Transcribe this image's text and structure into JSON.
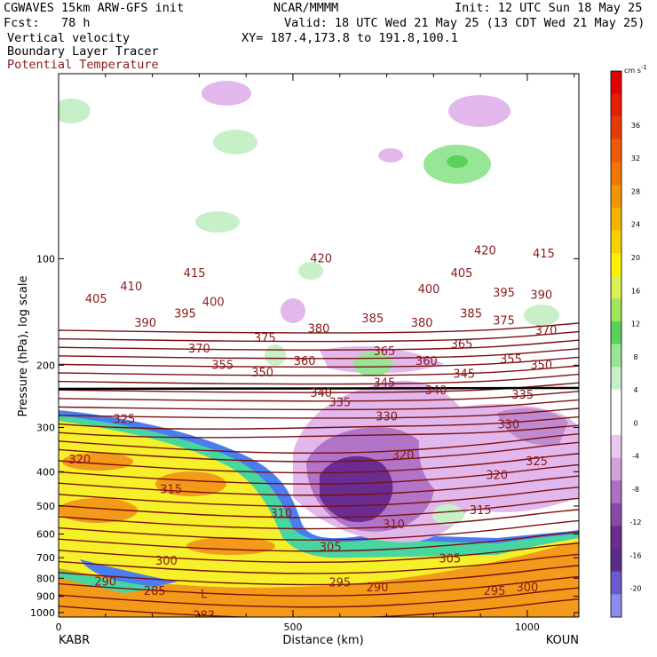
{
  "header": {
    "model": "CGWAVES 15km ARW-GFS init",
    "forecast": "Fcst:   78 h",
    "center": "NCAR/MMMM",
    "init": "Init: 12 UTC Sun 18 May 25",
    "valid": "Valid: 18 UTC Wed 21 May 25 (13 CDT Wed 21 May 25)",
    "xy": "XY= 187.4,173.8 to 191.8,100.1",
    "field1": "Vertical velocity",
    "field2": "Boundary Layer Tracer",
    "field3": "Potential Temperature"
  },
  "colors": {
    "theta_contour": "#7a1010",
    "tropopause_line": "#000000",
    "text": "#000000",
    "theta_label": "#8b1a1a"
  },
  "chart_data": {
    "type": "cross-section",
    "ylabel": "Pressure (hPa), log scale",
    "xlabel": "Distance (km)",
    "x_start_label": "KABR",
    "x_end_label": "KOUN",
    "xlim": [
      0,
      1110
    ],
    "xticks": [
      0,
      500,
      1000
    ],
    "ylim_hpa": [
      1030,
      30
    ],
    "yticks": [
      100,
      200,
      300,
      400,
      500,
      600,
      700,
      800,
      900,
      1000
    ],
    "colorbar": {
      "unit": "cm s",
      "unit_exponent": "-1",
      "ticks": [
        36,
        32,
        28,
        24,
        20,
        16,
        12,
        8,
        4,
        0,
        -4,
        -8,
        -12,
        -16,
        -20
      ],
      "colors": [
        "#8c8cf0",
        "#6a5acd",
        "#5a2d8a",
        "#6a2c91",
        "#8a4aa8",
        "#ae6fc0",
        "#d4a0dc",
        "#e8c8ee",
        "#ffffff",
        "#ffffff",
        "#c8f0c8",
        "#96e696",
        "#5ad25a",
        "#a0e65a",
        "#dcf050",
        "#fff000",
        "#fad200",
        "#f5b400",
        "#f09600",
        "#f07800",
        "#f05a00",
        "#e63c00",
        "#e61e00",
        "#e60000"
      ]
    },
    "theta_labels": [
      {
        "x": 290,
        "p": 110,
        "v": "415"
      },
      {
        "x": 155,
        "p": 120,
        "v": "410"
      },
      {
        "x": 80,
        "p": 130,
        "v": "405"
      },
      {
        "x": 330,
        "p": 133,
        "v": "400"
      },
      {
        "x": 270,
        "p": 143,
        "v": "395"
      },
      {
        "x": 185,
        "p": 152,
        "v": "390"
      },
      {
        "x": 560,
        "p": 100,
        "v": "420"
      },
      {
        "x": 910,
        "p": 95,
        "v": "420"
      },
      {
        "x": 1035,
        "p": 97,
        "v": "415"
      },
      {
        "x": 860,
        "p": 110,
        "v": "405"
      },
      {
        "x": 790,
        "p": 122,
        "v": "400"
      },
      {
        "x": 950,
        "p": 125,
        "v": "395"
      },
      {
        "x": 1030,
        "p": 127,
        "v": "390"
      },
      {
        "x": 670,
        "p": 148,
        "v": "385"
      },
      {
        "x": 880,
        "p": 143,
        "v": "385"
      },
      {
        "x": 555,
        "p": 158,
        "v": "380"
      },
      {
        "x": 775,
        "p": 152,
        "v": "380"
      },
      {
        "x": 950,
        "p": 150,
        "v": "375"
      },
      {
        "x": 440,
        "p": 168,
        "v": "375"
      },
      {
        "x": 1040,
        "p": 160,
        "v": "370"
      },
      {
        "x": 300,
        "p": 180,
        "v": "370"
      },
      {
        "x": 860,
        "p": 175,
        "v": "365"
      },
      {
        "x": 695,
        "p": 183,
        "v": "365"
      },
      {
        "x": 525,
        "p": 195,
        "v": "360"
      },
      {
        "x": 785,
        "p": 195,
        "v": "360"
      },
      {
        "x": 350,
        "p": 200,
        "v": "355"
      },
      {
        "x": 965,
        "p": 193,
        "v": "355"
      },
      {
        "x": 435,
        "p": 210,
        "v": "350"
      },
      {
        "x": 1030,
        "p": 200,
        "v": "350"
      },
      {
        "x": 865,
        "p": 212,
        "v": "345"
      },
      {
        "x": 695,
        "p": 225,
        "v": "345"
      },
      {
        "x": 560,
        "p": 240,
        "v": "340"
      },
      {
        "x": 805,
        "p": 236,
        "v": "340"
      },
      {
        "x": 990,
        "p": 243,
        "v": "335"
      },
      {
        "x": 600,
        "p": 255,
        "v": "335"
      },
      {
        "x": 700,
        "p": 280,
        "v": "330"
      },
      {
        "x": 960,
        "p": 295,
        "v": "330"
      },
      {
        "x": 140,
        "p": 285,
        "v": "325"
      },
      {
        "x": 1020,
        "p": 375,
        "v": "325"
      },
      {
        "x": 45,
        "p": 370,
        "v": "320"
      },
      {
        "x": 735,
        "p": 360,
        "v": "320"
      },
      {
        "x": 935,
        "p": 410,
        "v": "320"
      },
      {
        "x": 240,
        "p": 450,
        "v": "315"
      },
      {
        "x": 900,
        "p": 515,
        "v": "315"
      },
      {
        "x": 475,
        "p": 525,
        "v": "310"
      },
      {
        "x": 715,
        "p": 565,
        "v": "310"
      },
      {
        "x": 580,
        "p": 655,
        "v": "305"
      },
      {
        "x": 835,
        "p": 705,
        "v": "305"
      },
      {
        "x": 230,
        "p": 715,
        "v": "300"
      },
      {
        "x": 1000,
        "p": 850,
        "v": "300"
      },
      {
        "x": 100,
        "p": 820,
        "v": "290"
      },
      {
        "x": 600,
        "p": 825,
        "v": "295"
      },
      {
        "x": 680,
        "p": 850,
        "v": "290"
      },
      {
        "x": 930,
        "p": 870,
        "v": "295"
      },
      {
        "x": 205,
        "p": 870,
        "v": "285"
      },
      {
        "x": 310,
        "p": 1020,
        "v": "283"
      },
      {
        "x": 310,
        "p": 890,
        "v": "L"
      }
    ]
  }
}
